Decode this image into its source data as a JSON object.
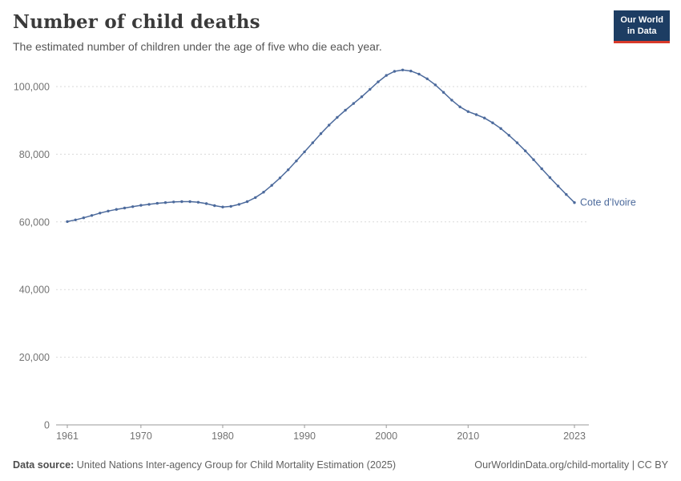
{
  "header": {
    "title": "Number of child deaths",
    "subtitle": "The estimated number of children under the age of five who die each year.",
    "logo": {
      "line1": "Our World",
      "line2": "in Data"
    }
  },
  "chart_data": {
    "type": "line",
    "title": "Number of child deaths",
    "xlabel": "",
    "ylabel": "",
    "entity": "Cote d'Ivoire",
    "line_color": "#4c6a9c",
    "grid": "dashed-horizontal",
    "xlim": [
      1961,
      2023
    ],
    "ylim": [
      0,
      105000
    ],
    "x_ticks": [
      1961,
      1970,
      1980,
      1990,
      2000,
      2010,
      2023
    ],
    "y_ticks": [
      0,
      20000,
      40000,
      60000,
      80000,
      100000
    ],
    "x": [
      1961,
      1962,
      1963,
      1964,
      1965,
      1966,
      1967,
      1968,
      1969,
      1970,
      1971,
      1972,
      1973,
      1974,
      1975,
      1976,
      1977,
      1978,
      1979,
      1980,
      1981,
      1982,
      1983,
      1984,
      1985,
      1986,
      1987,
      1988,
      1989,
      1990,
      1991,
      1992,
      1993,
      1994,
      1995,
      1996,
      1997,
      1998,
      1999,
      2000,
      2001,
      2002,
      2003,
      2004,
      2005,
      2006,
      2007,
      2008,
      2009,
      2010,
      2011,
      2012,
      2013,
      2014,
      2015,
      2016,
      2017,
      2018,
      2019,
      2020,
      2021,
      2022,
      2023
    ],
    "values": [
      60100,
      60600,
      61200,
      61900,
      62600,
      63200,
      63700,
      64100,
      64500,
      64900,
      65200,
      65500,
      65700,
      65900,
      66000,
      66000,
      65800,
      65400,
      64800,
      64400,
      64600,
      65200,
      66000,
      67200,
      68800,
      70800,
      73000,
      75400,
      78000,
      80700,
      83400,
      86100,
      88600,
      90900,
      93000,
      95000,
      97000,
      99200,
      101400,
      103300,
      104500,
      104900,
      104600,
      103700,
      102300,
      100500,
      98300,
      96000,
      94000,
      92600,
      91700,
      90700,
      89300,
      87600,
      85600,
      83400,
      81000,
      78400,
      75700,
      73100,
      70600,
      68100,
      65700
    ]
  },
  "footer": {
    "source_label": "Data source:",
    "source_text": "United Nations Inter-agency Group for Child Mortality Estimation (2025)",
    "right_text": "OurWorldinData.org/child-mortality | CC BY"
  }
}
